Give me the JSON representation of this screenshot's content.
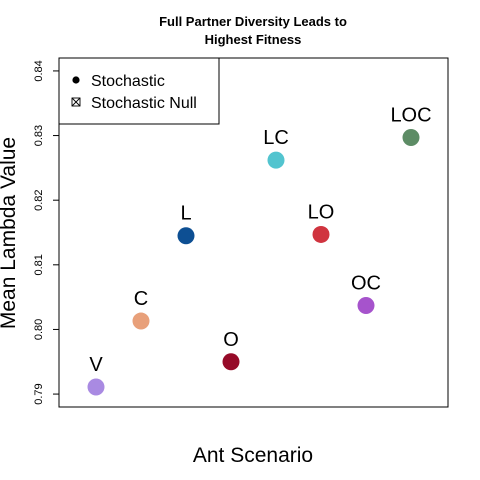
{
  "chart_data": {
    "type": "scatter",
    "title": "Full Partner Diversity Leads to\nHighest Fitness",
    "xlabel": "Ant Scenario",
    "ylabel": "Mean Lambda Value",
    "ylim": [
      0.788,
      0.842
    ],
    "yticks": [
      "0.79",
      "0.80",
      "0.81",
      "0.82",
      "0.83",
      "0.84"
    ],
    "legend": {
      "position": "top-left",
      "entries": [
        {
          "label": "Stochastic",
          "symbol": "filled-circle-icon"
        },
        {
          "label": "Stochastic Null",
          "symbol": "crossed-box-icon"
        }
      ]
    },
    "points": [
      {
        "label": "V",
        "x": 1,
        "y": 0.7911,
        "color": "#a98ae2"
      },
      {
        "label": "C",
        "x": 2,
        "y": 0.8013,
        "color": "#e8a07a"
      },
      {
        "label": "L",
        "x": 3,
        "y": 0.8145,
        "color": "#0d4f93"
      },
      {
        "label": "O",
        "x": 4,
        "y": 0.795,
        "color": "#960a28"
      },
      {
        "label": "LC",
        "x": 5,
        "y": 0.8262,
        "color": "#52c4cf"
      },
      {
        "label": "LO",
        "x": 6,
        "y": 0.8147,
        "color": "#d0343f"
      },
      {
        "label": "OC",
        "x": 7,
        "y": 0.8037,
        "color": "#a653cc"
      },
      {
        "label": "LOC",
        "x": 8,
        "y": 0.8297,
        "color": "#5d8c65"
      }
    ]
  }
}
